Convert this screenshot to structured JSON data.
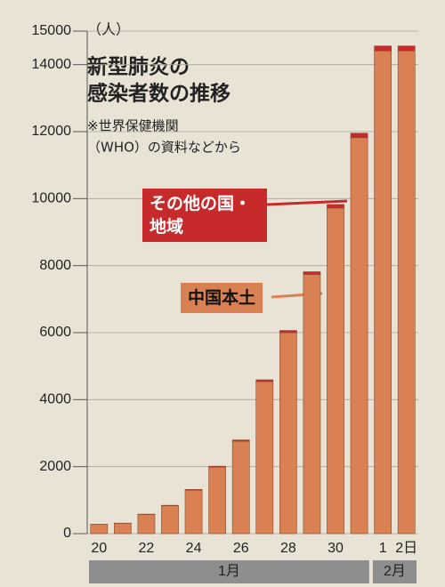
{
  "chart_data": {
    "type": "stacked_bar",
    "title": [
      "新型肺炎の",
      "感染者数の推移"
    ],
    "source": [
      "※世界保健機関",
      "（WHO）の資料などから"
    ],
    "y_unit": "（人）",
    "categories": [
      "20",
      null,
      "22",
      null,
      "24",
      null,
      "26",
      null,
      "28",
      null,
      "30",
      null,
      "1",
      "2日"
    ],
    "months": [
      {
        "label": "1月",
        "from": 0,
        "to": 11
      },
      {
        "label": "2月",
        "from": 12,
        "to": 13
      }
    ],
    "series": [
      {
        "name": "中国本土",
        "color": "#d98152",
        "values": [
          275,
          309,
          571,
          830,
          1297,
          1985,
          2761,
          4537,
          5997,
          7736,
          9720,
          11821,
          14411,
          14411
        ]
      },
      {
        "name": "その他の国・地域",
        "color": "#c62a2a",
        "values": [
          4,
          5,
          10,
          16,
          23,
          29,
          37,
          56,
          68,
          82,
          106,
          132,
          146,
          146
        ]
      }
    ],
    "ylim": [
      0,
      15000
    ],
    "yticks": [
      0,
      2000,
      4000,
      6000,
      8000,
      10000,
      12000,
      14000,
      15000
    ],
    "grid": true
  }
}
